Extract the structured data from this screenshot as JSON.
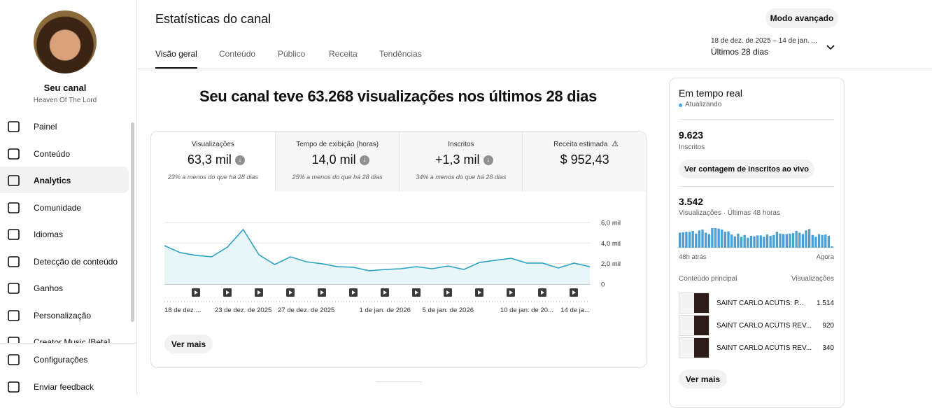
{
  "sidebar": {
    "channel_title": "Seu canal",
    "channel_name": "Heaven Of The Lord",
    "nav": [
      "Painel",
      "Conteúdo",
      "Analytics",
      "Comunidade",
      "Idiomas",
      "Detecção de conteúdo",
      "Ganhos",
      "Personalização",
      "Creator Music [Beta]"
    ],
    "footer": [
      "Configurações",
      "Enviar feedback"
    ]
  },
  "header": {
    "title": "Estatísticas do canal",
    "tabs": [
      "Visão geral",
      "Conteúdo",
      "Público",
      "Receita",
      "Tendências"
    ],
    "advanced_button": "Modo avançado",
    "date_range": "18 de dez. de 2025 – 14 de jan. ...",
    "period": "Últimos 28 dias"
  },
  "headline": "Seu canal teve 63.268 visualizações nos últimos 28 dias",
  "metrics": [
    {
      "label": "Visualizações",
      "value": "63,3 mil",
      "note": "23% a menos do que há 28 dias"
    },
    {
      "label": "Tempo de exibição (horas)",
      "value": "14,0 mil",
      "note": "25% a menos do que há 28 dias"
    },
    {
      "label": "Inscritos",
      "value": "+1,3 mil",
      "note": "34% a menos do que há 28 dias"
    },
    {
      "label": "Receita estimada",
      "value": "$ 952,43"
    }
  ],
  "see_more": "Ver mais",
  "realtime": {
    "title": "Em tempo real",
    "status": "Atualizando",
    "subscribers": "9.623",
    "subscribers_label": "Inscritos",
    "live_button": "Ver contagem de inscritos ao vivo",
    "views": "3.542",
    "views_label": "Visualizações · Últimas 48 horas",
    "top_content_label": "Conteúdo principal",
    "top_views_label": "Visualizações",
    "top_content": [
      {
        "title": "SAINT CARLO ACUTIS: P...",
        "views": "1.514"
      },
      {
        "title": "SAINT CARLO ACUTIS REV...",
        "views": "920"
      },
      {
        "title": "SAINT CARLO ACUTIS REV...",
        "views": "340"
      }
    ],
    "see_more": "Ver mais"
  },
  "chart_data": [
    {
      "type": "line",
      "color": "#2ea3c4",
      "categories": [
        "18 de dez....",
        null,
        null,
        null,
        null,
        "23 de dez. de 2025",
        null,
        null,
        null,
        "27 de dez. de 2025",
        null,
        null,
        null,
        null,
        "1 de jan. de 2026",
        null,
        null,
        null,
        "5 de jan. de 2026",
        null,
        null,
        null,
        null,
        "10 de jan. de 20...",
        null,
        null,
        null,
        "14 de ja..."
      ],
      "values": [
        3750,
        3070,
        2800,
        2660,
        3610,
        5320,
        2860,
        1910,
        2660,
        2180,
        1980,
        1700,
        1640,
        1300,
        1430,
        1500,
        1700,
        1500,
        1770,
        1430,
        2110,
        2320,
        2520,
        2050,
        2050,
        1570,
        2050,
        1700
      ],
      "ylim": [
        0,
        6000
      ],
      "yticks": [
        0,
        {
          "value": 2000,
          "label": "2,0 mil"
        },
        {
          "value": 4000,
          "label": "4,0 mil"
        },
        {
          "value": 6000,
          "label": "6,0 mil"
        }
      ],
      "grid": true
    },
    {
      "type": "bar",
      "color": "#4a9fd5",
      "categories": [
        "48h atrás",
        null,
        null,
        null,
        null,
        null,
        null,
        null,
        null,
        null,
        null,
        null,
        null,
        null,
        null,
        null,
        null,
        null,
        null,
        null,
        null,
        null,
        null,
        null,
        null,
        null,
        null,
        null,
        null,
        null,
        null,
        null,
        null,
        null,
        null,
        null,
        null,
        null,
        null,
        null,
        null,
        null,
        null,
        null,
        null,
        null,
        null,
        "Agora"
      ],
      "values": [
        66,
        68,
        70,
        70,
        74,
        62,
        76,
        80,
        66,
        60,
        86,
        86,
        84,
        80,
        70,
        72,
        58,
        50,
        62,
        48,
        56,
        44,
        52,
        50,
        54,
        54,
        48,
        58,
        52,
        56,
        70,
        62,
        60,
        60,
        62,
        64,
        74,
        66,
        60,
        76,
        82,
        56,
        48,
        60,
        56,
        58,
        52,
        6
      ]
    }
  ]
}
